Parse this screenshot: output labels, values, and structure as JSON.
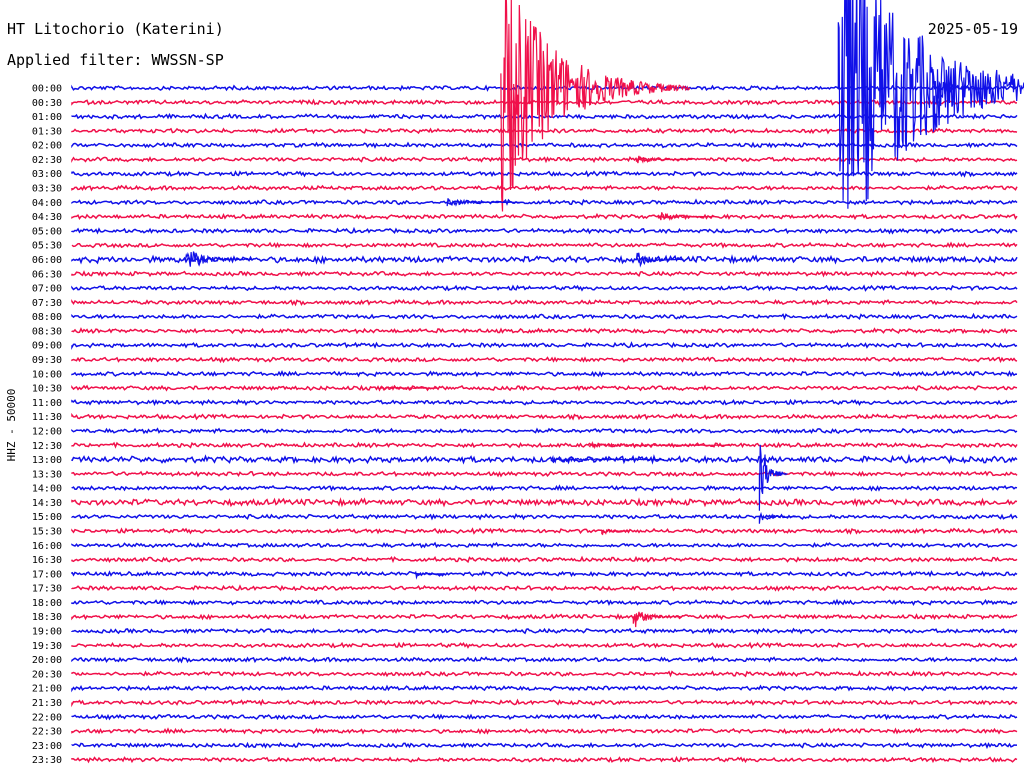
{
  "header": {
    "station": "HT Litochorio (Katerini)",
    "filter": "Applied filter: WWSSN-SP",
    "date": "2025-05-19"
  },
  "chart_data": {
    "type": "line",
    "title": "HT Litochorio (Katerini)",
    "subtitle": "Applied filter: WWSSN-SP",
    "date": "2025-05-19",
    "ylabel": "HHZ - 50000",
    "xlabel": "",
    "line_minutes": 30,
    "row_labels": [
      "00:00",
      "00:30",
      "01:00",
      "01:30",
      "02:00",
      "02:30",
      "03:00",
      "03:30",
      "04:00",
      "04:30",
      "05:00",
      "05:30",
      "06:00",
      "06:30",
      "07:00",
      "07:30",
      "08:00",
      "08:30",
      "09:00",
      "09:30",
      "10:00",
      "10:30",
      "11:00",
      "11:30",
      "12:00",
      "12:30",
      "13:00",
      "13:30",
      "14:00",
      "14:30",
      "15:00",
      "15:30",
      "16:00",
      "16:30",
      "17:00",
      "17:30",
      "18:00",
      "18:30",
      "19:00",
      "19:30",
      "20:00",
      "20:30",
      "21:00",
      "21:30",
      "22:00",
      "22:30",
      "23:00",
      "23:30"
    ],
    "colors": {
      "even_rows": "#1010e8",
      "odd_rows": "#f0104a"
    },
    "grid": false,
    "events": [
      {
        "row": 0,
        "minute": 13.6,
        "amplitude": 9.0,
        "decay": 2.0,
        "color_row": 1,
        "note": "large regional event (red trace)"
      },
      {
        "row": 0,
        "minute": 24.3,
        "amplitude": 12.0,
        "decay": 3.0,
        "color_row": 0,
        "note": "large event (blue trace)"
      },
      {
        "row": 0,
        "minute": 27.3,
        "amplitude": 1.5,
        "decay": 0.5,
        "color_row": 0
      },
      {
        "row": 5,
        "minute": 17.9,
        "amplitude": 0.3,
        "decay": 0.6,
        "color_row": 5
      },
      {
        "row": 8,
        "minute": 11.9,
        "amplitude": 0.3,
        "decay": 0.8,
        "color_row": 8
      },
      {
        "row": 9,
        "minute": 18.6,
        "amplitude": 0.4,
        "decay": 0.6,
        "color_row": 9
      },
      {
        "row": 12,
        "minute": 3.6,
        "amplitude": 0.9,
        "decay": 0.7,
        "color_row": 12
      },
      {
        "row": 12,
        "minute": 17.9,
        "amplitude": 0.6,
        "decay": 0.5,
        "color_row": 12
      },
      {
        "row": 21,
        "minute": 9.8,
        "amplitude": 0.2,
        "decay": 0.6,
        "color_row": 21
      },
      {
        "row": 25,
        "minute": 16.4,
        "amplitude": 0.2,
        "decay": 1.5,
        "color_row": 25
      },
      {
        "row": 26,
        "minute": 15.2,
        "amplitude": 0.2,
        "decay": 1.2,
        "color_row": 26
      },
      {
        "row": 27,
        "minute": 21.8,
        "amplitude": 3.0,
        "decay": 0.3,
        "color_row": 26
      },
      {
        "row": 30,
        "minute": 21.8,
        "amplitude": 0.6,
        "decay": 0.4,
        "color_row": 30
      },
      {
        "row": 31,
        "minute": 16.8,
        "amplitude": 0.3,
        "decay": 0.3,
        "color_row": 31
      },
      {
        "row": 34,
        "minute": 10.9,
        "amplitude": 0.3,
        "decay": 0.3,
        "color_row": 34
      },
      {
        "row": 37,
        "minute": 17.8,
        "amplitude": 0.9,
        "decay": 0.5,
        "color_row": 37
      }
    ]
  }
}
